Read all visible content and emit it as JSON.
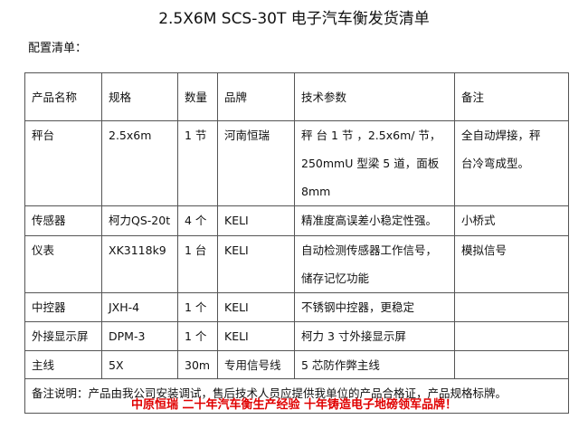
{
  "title": "2.5X6M SCS-30T 电子汽车衡发货清单",
  "subtitle": "配置清单：",
  "headers": [
    "产品名称",
    "规格",
    "数量",
    "品牌",
    "技术参数",
    "备注"
  ],
  "rows": [
    [
      "秤台",
      "2.5x6m",
      "1 节",
      "河南恒瑞",
      "秤 台 1 节 ，2.5x6m/ 节，\n250mmU 型梁 5 道，面板 8mm",
      "全自动焊接，秤\n台冷弯成型。"
    ],
    [
      "传感器",
      "柯力QS-20t",
      "4 个",
      "KELI",
      "精准度高误差小稳定性强。",
      "小桥式"
    ],
    [
      "仪表",
      "XK3118k9",
      "1 台",
      "KELI",
      "自动检测传感器工作信号，\n储存记忆功能",
      "模拟信号"
    ],
    [
      "中控器",
      "JXH-4",
      "1 个",
      "KELI",
      "不锈钢中控器，更稳定",
      ""
    ],
    [
      "外接显示屏",
      "DPM-3",
      "1 个",
      "KELI",
      "柯力 3 寸外接显示屏",
      ""
    ],
    [
      "主线",
      "5X",
      "30m",
      "专用信号线",
      "5 芯防作弊主线",
      ""
    ]
  ],
  "note": "备注说明：产品由我公司安装调试，售后技术人员应提供我单位的产品合格证，产品规格标牌。",
  "slogan": "中原恒瑞  二十年汽车衡生产经验  十年铸造电子地磅领军品牌！",
  "colors": {
    "slogan": "#e00000"
  }
}
